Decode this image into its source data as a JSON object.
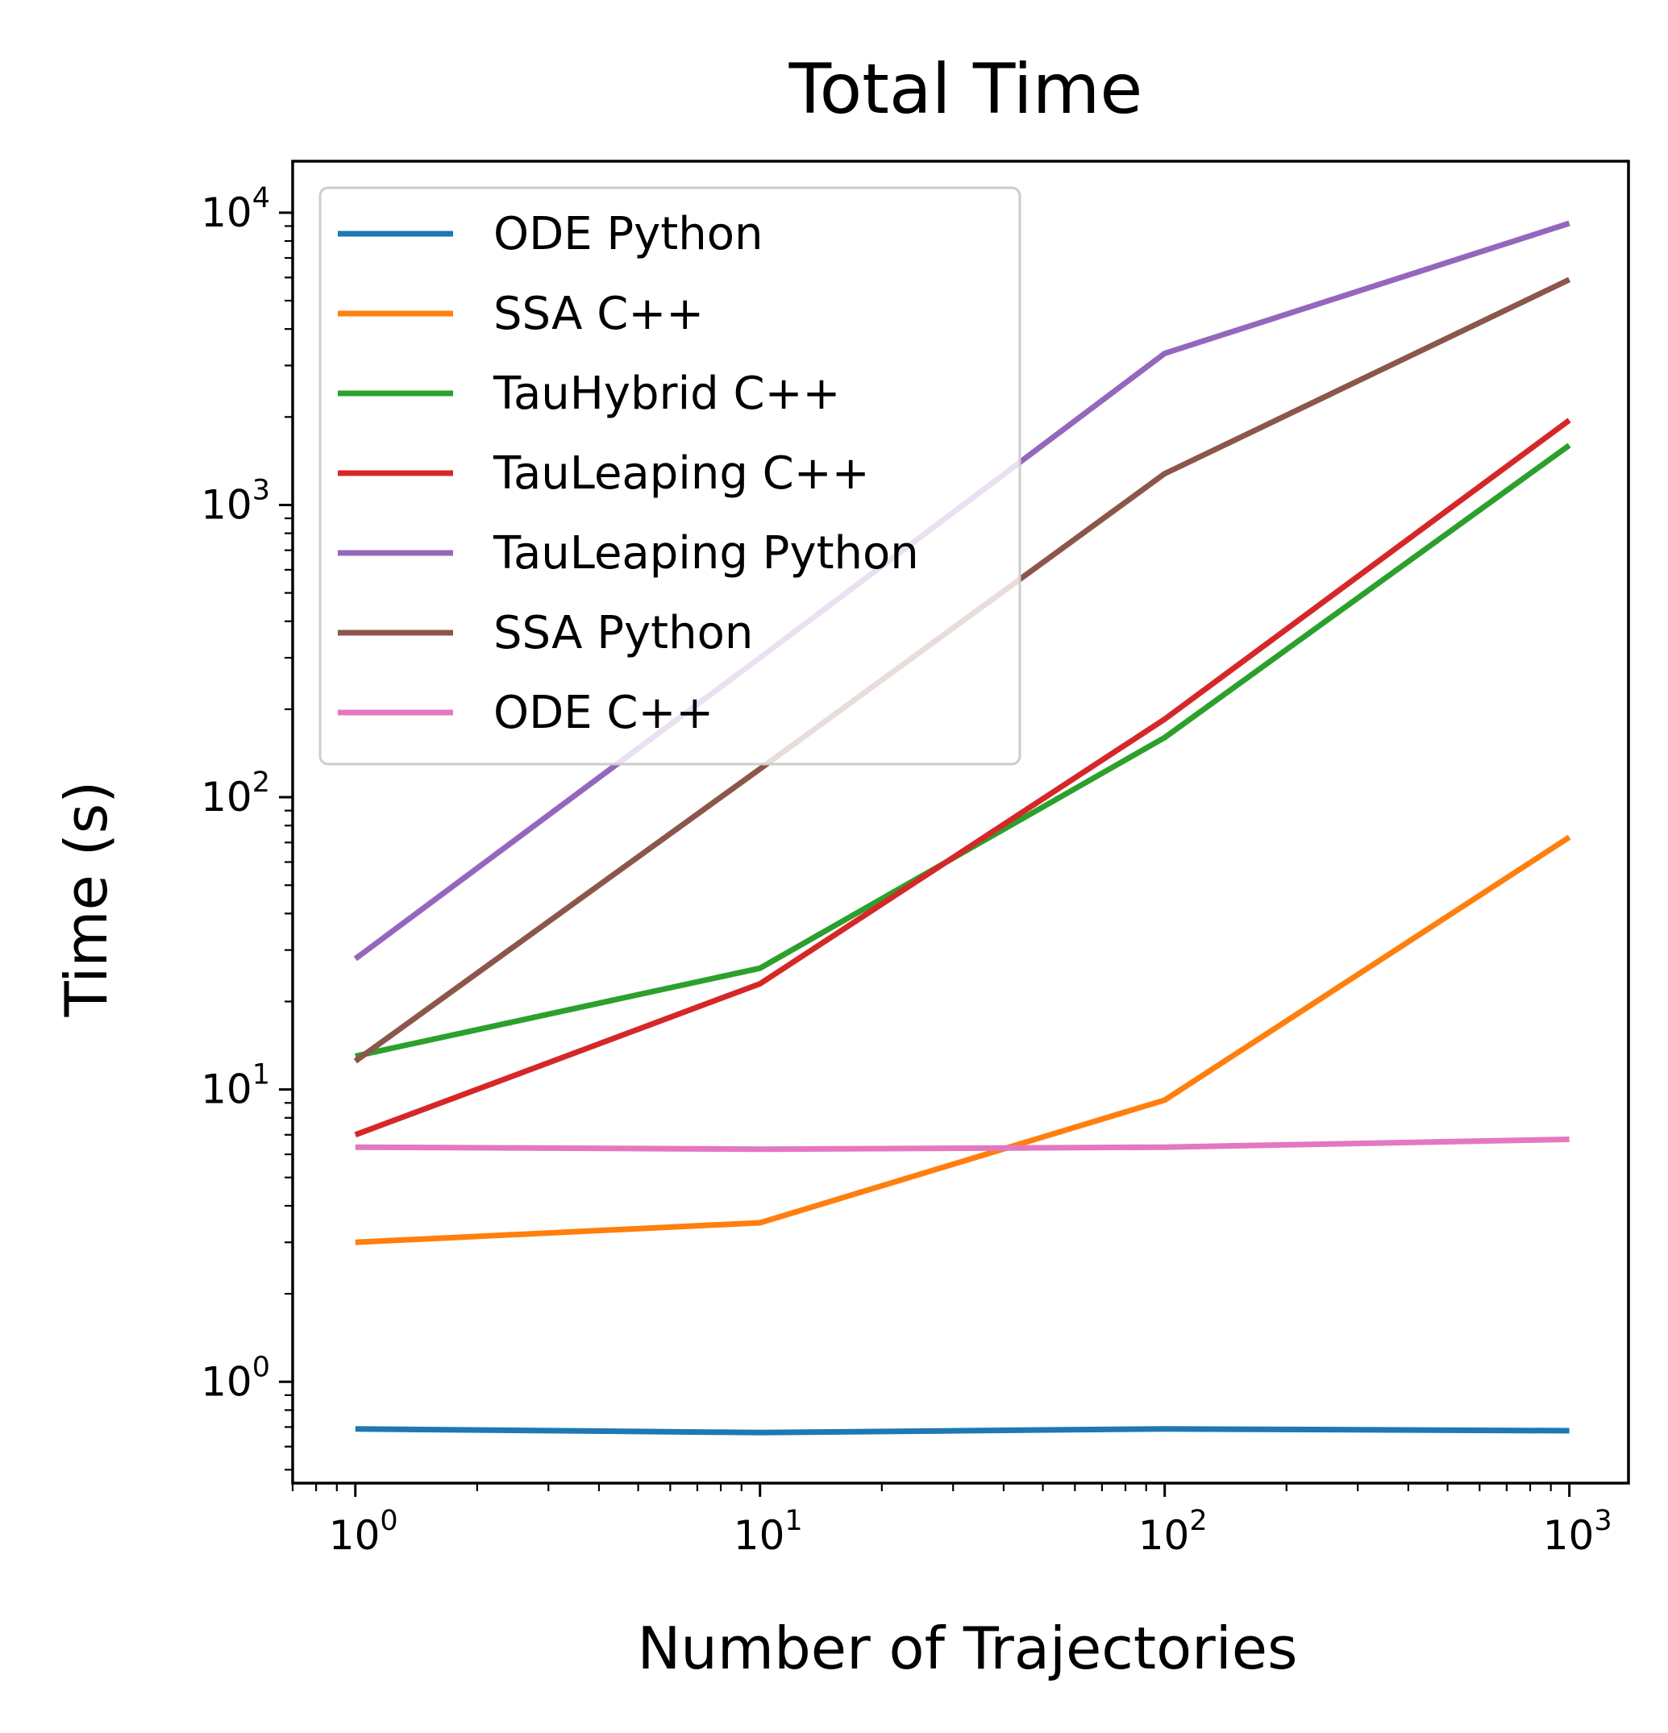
{
  "chart_data": {
    "type": "line",
    "title": "Total Time",
    "xlabel": "Number of Trajectories",
    "ylabel": "Time (s)",
    "xscale": "log",
    "yscale": "log",
    "xlim": [
      0.7,
      1400
    ],
    "ylim": [
      0.45,
      15000
    ],
    "x": [
      1,
      10,
      100,
      1000
    ],
    "xticks": [
      {
        "base": "10",
        "exp": "0"
      },
      {
        "base": "10",
        "exp": "1"
      },
      {
        "base": "10",
        "exp": "2"
      },
      {
        "base": "10",
        "exp": "3"
      }
    ],
    "yticks": [
      {
        "base": "10",
        "exp": "0"
      },
      {
        "base": "10",
        "exp": "1"
      },
      {
        "base": "10",
        "exp": "2"
      },
      {
        "base": "10",
        "exp": "3"
      },
      {
        "base": "10",
        "exp": "4"
      }
    ],
    "grid": false,
    "legend_position": "top-left",
    "series": [
      {
        "name": "ODE Python",
        "color": "#1f77b4",
        "values": [
          0.69,
          0.67,
          0.69,
          0.68
        ]
      },
      {
        "name": "SSA C++",
        "color": "#ff7f0e",
        "values": [
          3.0,
          3.5,
          9.2,
          73
        ]
      },
      {
        "name": "TauHybrid C++",
        "color": "#2ca02c",
        "values": [
          13,
          26,
          160,
          1600
        ]
      },
      {
        "name": "TauLeaping C++",
        "color": "#d62728",
        "values": [
          7.0,
          23,
          185,
          1950
        ]
      },
      {
        "name": "TauLeaping Python",
        "color": "#9467bd",
        "values": [
          28,
          300,
          3300,
          9200
        ]
      },
      {
        "name": "SSA Python",
        "color": "#8c564b",
        "values": [
          12.5,
          125,
          1280,
          5900
        ]
      },
      {
        "name": "ODE C++",
        "color": "#e377c2",
        "values": [
          6.35,
          6.25,
          6.35,
          6.75
        ]
      }
    ]
  }
}
